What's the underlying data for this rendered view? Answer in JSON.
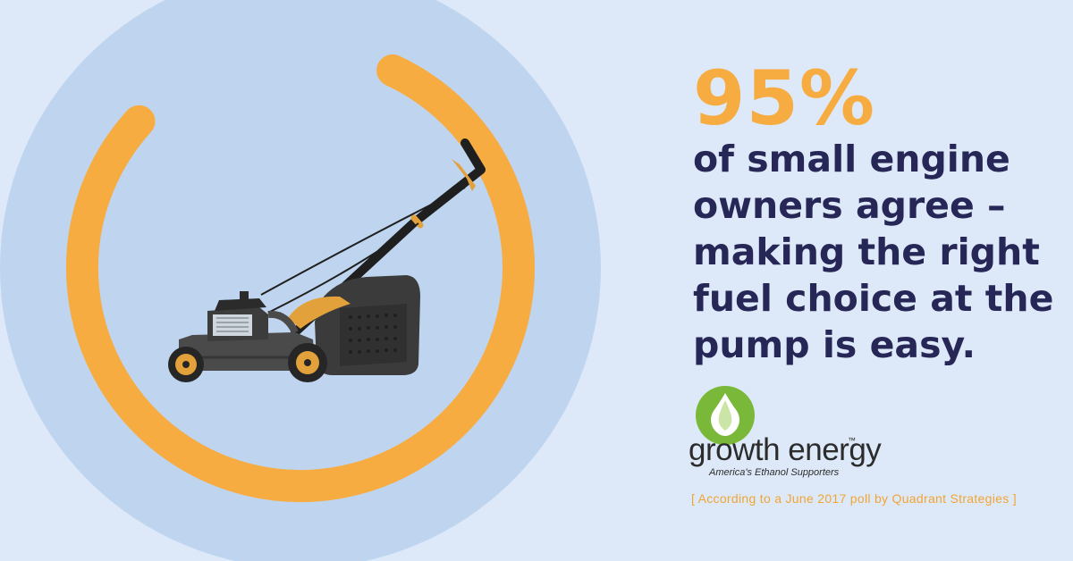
{
  "stat": {
    "value": "95%",
    "progress_percent": 95
  },
  "statement_lines": [
    "of small engine",
    "owners agree –",
    "making the right",
    "fuel choice at the",
    "pump is easy."
  ],
  "brand": {
    "name": "growth energy",
    "trademark": "™",
    "tagline": "America's Ethanol Supporters"
  },
  "source_note": "[ According to a June 2017 poll by Quadrant Strategies ]",
  "icons": [
    "lawn-mower-illustration",
    "progress-ring",
    "leaf-drop-logo-icon"
  ],
  "colors": {
    "background": "#dde9f8",
    "circle": "#bfd4ee",
    "accent_orange": "#f6ac41",
    "headline_navy": "#262757",
    "logo_green": "#7ab839"
  }
}
